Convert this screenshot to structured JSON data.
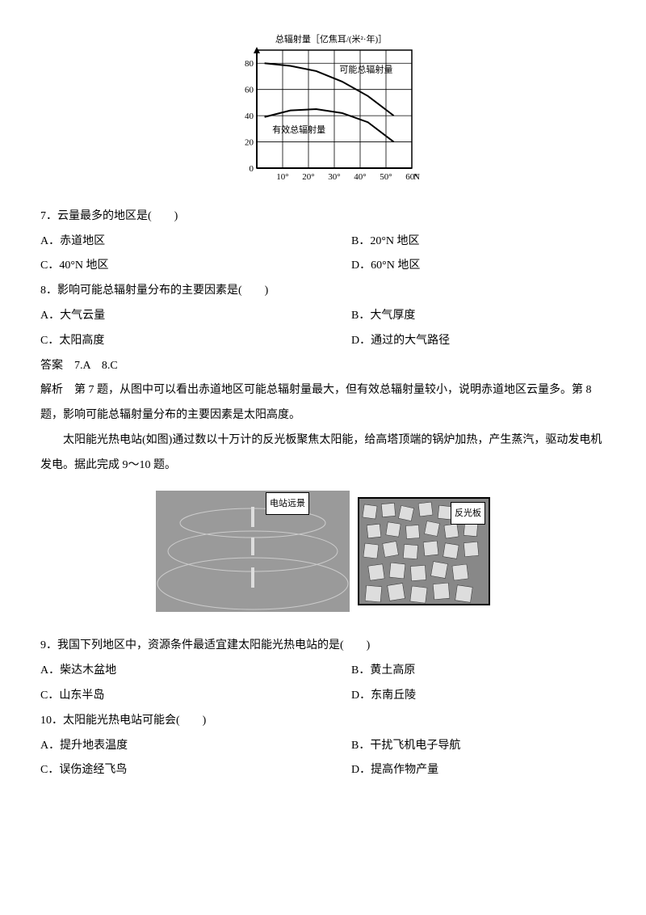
{
  "chart": {
    "title": "总辐射量［亿焦耳/(米²·年)］",
    "y_ticks": [
      0,
      20,
      40,
      60,
      80
    ],
    "x_ticks": [
      "10°",
      "20°",
      "30°",
      "40°",
      "50°",
      "60°"
    ],
    "x_suffix": "N",
    "series": [
      {
        "label": "可能总辐射量",
        "points": [
          [
            0,
            80
          ],
          [
            1,
            78
          ],
          [
            2,
            74
          ],
          [
            3,
            66
          ],
          [
            4,
            55
          ],
          [
            5,
            40
          ]
        ],
        "label_xy": [
          3.2,
          73
        ]
      },
      {
        "label": "有效总辐射量",
        "points": [
          [
            0,
            39
          ],
          [
            1,
            44
          ],
          [
            2,
            45
          ],
          [
            3,
            42
          ],
          [
            4,
            35
          ],
          [
            5,
            20
          ]
        ],
        "label_xy": [
          0.6,
          27
        ]
      }
    ],
    "y_max": 90,
    "x_max": 6,
    "axis_color": "#000",
    "grid_color": "#000",
    "bg": "#fff",
    "font_size": 11
  },
  "q7": {
    "text": "7．云量最多的地区是(　　)",
    "a": "A．赤道地区",
    "b": "B．20°N 地区",
    "c": "C．40°N 地区",
    "d": "D．60°N 地区"
  },
  "q8": {
    "text": "8．影响可能总辐射量分布的主要因素是(　　)",
    "a": "A．大气云量",
    "b": "B．大气厚度",
    "c": "C．太阳高度",
    "d": "D．通过的大气路径"
  },
  "ans78": "答案　7.A　8.C",
  "analysis78": "解析　第 7 题，从图中可以看出赤道地区可能总辐射量最大，但有效总辐射量较小，说明赤道地区云量多。第 8 题，影响可能总辐射量分布的主要因素是太阳高度。",
  "intro910": "太阳能光热电站(如图)通过数以十万计的反光板聚焦太阳能，给高塔顶端的锅炉加热，产生蒸汽，驱动发电机发电。据此完成 9～10 题。",
  "photos": {
    "left_label": "电站远景",
    "right_label": "反光板"
  },
  "q9": {
    "text": "9．我国下列地区中，资源条件最适宜建太阳能光热电站的是(　　)",
    "a": "A．柴达木盆地",
    "b": "B．黄土高原",
    "c": "C．山东半岛",
    "d": "D．东南丘陵"
  },
  "q10": {
    "text": "10．太阳能光热电站可能会(　　)",
    "a": "A．提升地表温度",
    "b": "B．干扰飞机电子导航",
    "c": "C．误伤途经飞鸟",
    "d": "D．提高作物产量"
  }
}
